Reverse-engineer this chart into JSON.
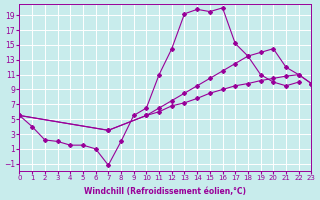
{
  "xlabel": "Windchill (Refroidissement éolien,°C)",
  "bg_color": "#c8ecec",
  "line_color": "#990099",
  "grid_color": "#ffffff",
  "xmin": 0,
  "xmax": 23,
  "ymin": -2,
  "ymax": 20.5,
  "yticks": [
    -1,
    1,
    3,
    5,
    7,
    9,
    11,
    13,
    15,
    17,
    19
  ],
  "xticks": [
    0,
    1,
    2,
    3,
    4,
    5,
    6,
    7,
    8,
    9,
    10,
    11,
    12,
    13,
    14,
    15,
    16,
    17,
    18,
    19,
    20,
    21,
    22,
    23
  ],
  "curve1_x": [
    0,
    1,
    2,
    3,
    4,
    5,
    6,
    7,
    8,
    9,
    10,
    11,
    12,
    13,
    14,
    15,
    16,
    17,
    18,
    19,
    20,
    21,
    22
  ],
  "curve1_y": [
    5.5,
    4.0,
    2.2,
    2.0,
    1.5,
    1.5,
    1.0,
    -1.2,
    2.0,
    5.5,
    6.5,
    11.0,
    14.5,
    19.2,
    19.8,
    19.5,
    20.0,
    15.2,
    13.5,
    11.0,
    10.0,
    9.5,
    10.0
  ],
  "curve2_x": [
    0,
    7,
    10,
    11,
    12,
    13,
    14,
    15,
    16,
    17,
    18,
    19,
    20,
    21,
    22,
    23
  ],
  "curve2_y": [
    5.5,
    3.5,
    5.5,
    6.5,
    7.5,
    8.5,
    9.5,
    10.5,
    11.5,
    12.5,
    13.5,
    14.0,
    14.5,
    12.0,
    11.0,
    9.8
  ],
  "curve3_x": [
    0,
    7,
    10,
    11,
    12,
    13,
    14,
    15,
    16,
    17,
    18,
    19,
    20,
    21,
    22,
    23
  ],
  "curve3_y": [
    5.5,
    3.5,
    5.5,
    6.0,
    6.8,
    7.2,
    7.8,
    8.5,
    9.0,
    9.5,
    9.8,
    10.2,
    10.5,
    10.8,
    11.0,
    9.8
  ]
}
